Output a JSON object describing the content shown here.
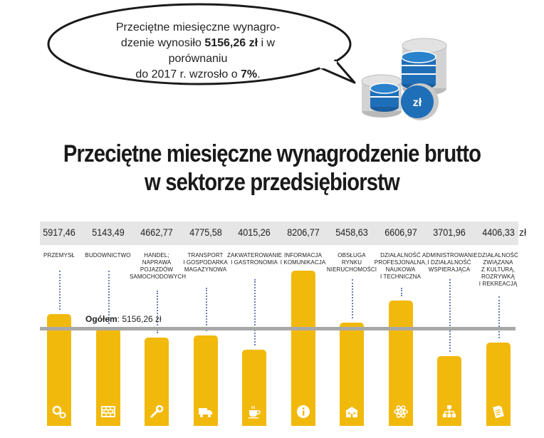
{
  "bubble": {
    "line1": "Przeciętne miesięczne wynagro-",
    "line2_prefix": "dzenie wynosiło ",
    "line2_bold": "5156,26 zł",
    "line2_suffix": " i w porównaniu",
    "line3_prefix": "do 2017 r. wzrosło o ",
    "line3_bold": "7%",
    "line3_suffix": "."
  },
  "coin_symbol": "zł",
  "title_line1": "Przeciętne miesięczne wynagrodzenie brutto",
  "title_line2": "w sektorze przedsiębiorstw",
  "unit": "zł",
  "average": {
    "label": "Ogółem",
    "value_text": ": 5156,26 zł"
  },
  "colors": {
    "bar": "#f2b90d",
    "avg_line": "#a8a8a8",
    "strip": "#e6e6e6",
    "coins_blue": "#1f6fb8",
    "coins_grey": "#cfcfcf"
  },
  "chart_data": {
    "type": "bar",
    "categories": [
      "PRZEMYSŁ",
      "BUDOWNICTWO",
      "HANDEL; NAPRAWA POJAZDÓW SAMOCHODOWYCH",
      "TRANSPORT I GOSPODARKA MAGAZYNOWA",
      "ZAKWATEROWANIE I GASTRONOMIA",
      "INFORMACJA I KOMUNIKACJA",
      "OBSŁUGA RYNKU NIERUCHOMOŚCI",
      "DZIAŁALNOŚĆ PROFESJONALNA, NAUKOWA I TECHNICZNA",
      "ADMINISTROWANIE I DZIAŁALNOŚĆ WSPIERAJĄCA",
      "DZIAŁALNOŚĆ ZWIĄZANA Z KULTURĄ, ROZRYWKĄ I REKREACJĄ"
    ],
    "category_lines": [
      "PRZEMYSŁ",
      "BUDOWNICTWO",
      "HANDEL;\nNAPRAWA\nPOJAZDÓW\nSAMOCHODOWYCH",
      "TRANSPORT\nI GOSPODARKA\nMAGAZYNOWA",
      "ZAKWATEROWANIE\nI GASTRONOMIA",
      "INFORMACJA\nI KOMUNIKACJA",
      "OBSŁUGA\nRYNKU\nNIERUCHOMOŚCI",
      "DZIAŁALNOŚĆ\nPROFESJONALNA,\nNAUKOWA\nI TECHNICZNA",
      "ADMINISTROWANIE\nI DZIAŁALNOŚĆ\nWSPIERAJĄCA",
      "DZIAŁALNOŚĆ\nZWIĄZANA\nZ KULTURĄ,\nROZRYWKĄ\nI REKREACJĄ"
    ],
    "values": [
      5917.46,
      5143.49,
      4662.77,
      4775.58,
      4015.26,
      8206.77,
      5458.63,
      6606.97,
      3701.96,
      4406.33
    ],
    "value_labels": [
      "5917,46",
      "5143,49",
      "4662,77",
      "4775,58",
      "4015,26",
      "8206,77",
      "5458,63",
      "6606,97",
      "3701,96",
      "4406,33"
    ],
    "icons": [
      "gears-icon",
      "bricks-icon",
      "wrench-icon",
      "truck-icon",
      "coffee-cup-icon",
      "info-icon",
      "buildings-icon",
      "atom-icon",
      "org-chart-icon",
      "theatre-ticket-icon"
    ],
    "reference_line": 5156.26,
    "title": "Przeciętne miesięczne wynagrodzenie brutto w sektorze przedsiębiorstw",
    "xlabel": "",
    "ylabel": ""
  }
}
